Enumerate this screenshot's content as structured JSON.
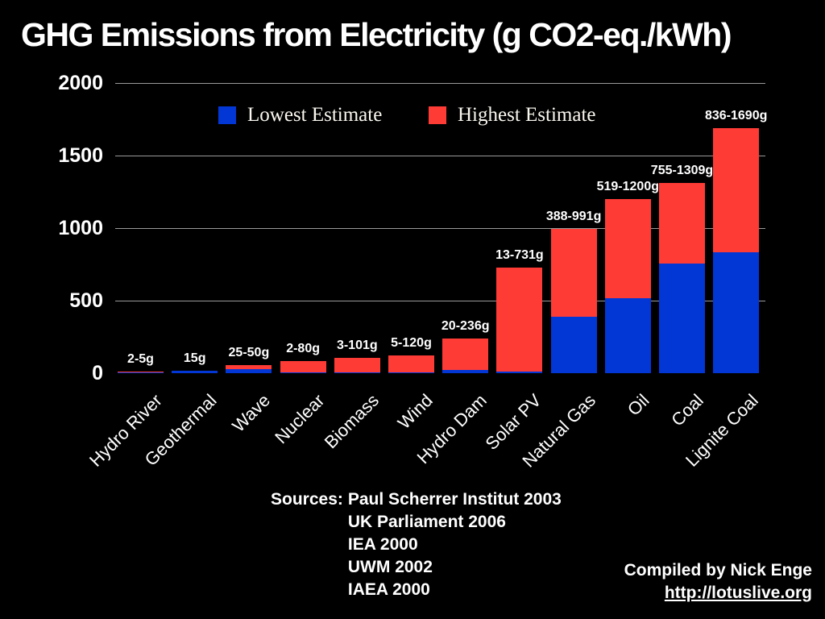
{
  "title": "GHG Emissions from Electricity (g CO2-eq./kWh)",
  "colors": {
    "background": "#000000",
    "lowest": "#0337D5",
    "highest": "#FF3B36",
    "gridline": "#9A9A9A",
    "text": "#FFFFFF"
  },
  "legend": [
    {
      "label": "Lowest Estimate",
      "color": "#0337D5"
    },
    {
      "label": "Highest Estimate",
      "color": "#FF3B36"
    }
  ],
  "chart_data": {
    "type": "bar",
    "stacked": true,
    "title": "GHG Emissions from Electricity (g CO2-eq./kWh)",
    "xlabel": "",
    "ylabel": "",
    "ylim": [
      0,
      2000
    ],
    "yticks": [
      0,
      500,
      1000,
      1500,
      2000
    ],
    "grid": true,
    "legend_position": "top",
    "categories": [
      "Hydro River",
      "Geothermal",
      "Wave",
      "Nuclear",
      "Biomass",
      "Wind",
      "Hydro Dam",
      "Solar PV",
      "Natural Gas",
      "Oil",
      "Coal",
      "Lignite Coal"
    ],
    "series": [
      {
        "name": "Lowest Estimate",
        "color": "#0337D5",
        "values": [
          2,
          15,
          25,
          2,
          3,
          5,
          20,
          13,
          388,
          519,
          755,
          836
        ]
      },
      {
        "name": "Highest Estimate",
        "color": "#FF3B36",
        "values": [
          5,
          15,
          50,
          80,
          101,
          120,
          236,
          731,
          991,
          1200,
          1309,
          1690
        ]
      }
    ],
    "bar_labels": [
      "2-5g",
      "15g",
      "25-50g",
      "2-80g",
      "3-101g",
      "5-120g",
      "20-236g",
      "13-731g",
      "388-991g",
      "519-1200g",
      "755-1309g",
      "836-1690g"
    ]
  },
  "sources": {
    "label": "Sources:",
    "items": [
      "Paul Scherrer Institut 2003",
      "UK Parliament 2006",
      "IEA 2000",
      "UWM 2002",
      "IAEA 2000"
    ]
  },
  "credit": {
    "line1": "Compiled by Nick Enge",
    "link": "http://lotuslive.org"
  }
}
